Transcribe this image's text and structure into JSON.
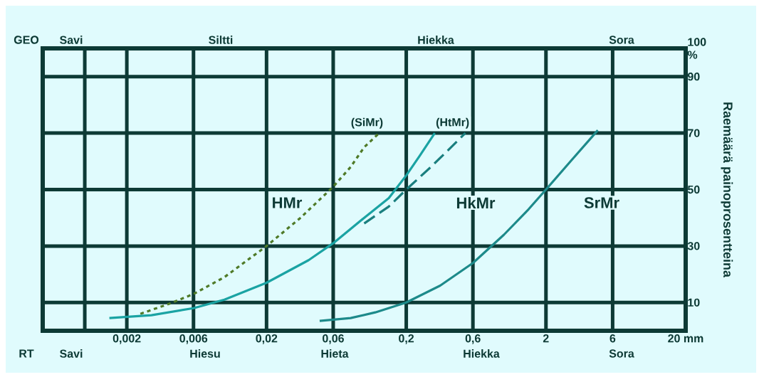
{
  "chart_data": {
    "type": "line",
    "ylabel": "Raemäärä painoprosentteina",
    "log": "x",
    "grid": true,
    "marker": "none",
    "xlim": [
      0.0005,
      20
    ],
    "ylim": [
      0,
      100
    ],
    "xticks": [
      {
        "value": 0.001,
        "label": null
      },
      {
        "value": 0.002,
        "label": "0,002"
      },
      {
        "value": 0.006,
        "label": "0,006"
      },
      {
        "value": 0.02,
        "label": "0,02"
      },
      {
        "value": 0.06,
        "label": "0,06"
      },
      {
        "value": 0.2,
        "label": "0,2"
      },
      {
        "value": 0.6,
        "label": "0,6"
      },
      {
        "value": 2,
        "label": "2"
      },
      {
        "value": 6,
        "label": "6"
      },
      {
        "value": 20,
        "label": "20 mm"
      }
    ],
    "yticks": [
      10,
      30,
      50,
      70,
      90,
      {
        "value": 100,
        "label": "100 %"
      }
    ],
    "series": [
      {
        "name": "(SiMr)",
        "color": "#4f7a28",
        "line_style": "dotted",
        "x": [
          0.0025,
          0.004,
          0.006,
          0.01,
          0.02,
          0.035,
          0.06,
          0.08,
          0.1,
          0.128
        ],
        "values": [
          6,
          9.5,
          13,
          19,
          30,
          40,
          51,
          58,
          65,
          70
        ]
      },
      {
        "color": "#1aa3a3",
        "line_style": "solid",
        "x": [
          0.0015,
          0.003,
          0.006,
          0.01,
          0.02,
          0.04,
          0.06,
          0.1,
          0.15,
          0.2,
          0.25,
          0.32
        ],
        "values": [
          4.5,
          5.5,
          8,
          11,
          17,
          25,
          31,
          40,
          47,
          55,
          62,
          70
        ]
      },
      {
        "name": "(HtMr)",
        "color": "#1a7f7f",
        "line_style": "dashed",
        "x": [
          0.1,
          0.15,
          0.2,
          0.3,
          0.4,
          0.53
        ],
        "values": [
          38,
          44,
          50,
          58,
          64,
          70
        ]
      },
      {
        "color": "#1d8a8a",
        "line_style": "solid",
        "x": [
          0.048,
          0.08,
          0.12,
          0.2,
          0.35,
          0.6,
          1,
          1.5,
          2,
          3,
          4.7
        ],
        "values": [
          3.5,
          4.5,
          6.5,
          10,
          16,
          24,
          34,
          43,
          50,
          60,
          71
        ]
      }
    ],
    "annotations": [
      "GEO",
      "Savi",
      "Siltti",
      "Hiekka",
      "Sora",
      "RT",
      "Savi",
      "Hiesu",
      "Hieta",
      "Hiekka",
      "Sora",
      "HMr",
      "HkMr",
      "SrMr"
    ]
  }
}
